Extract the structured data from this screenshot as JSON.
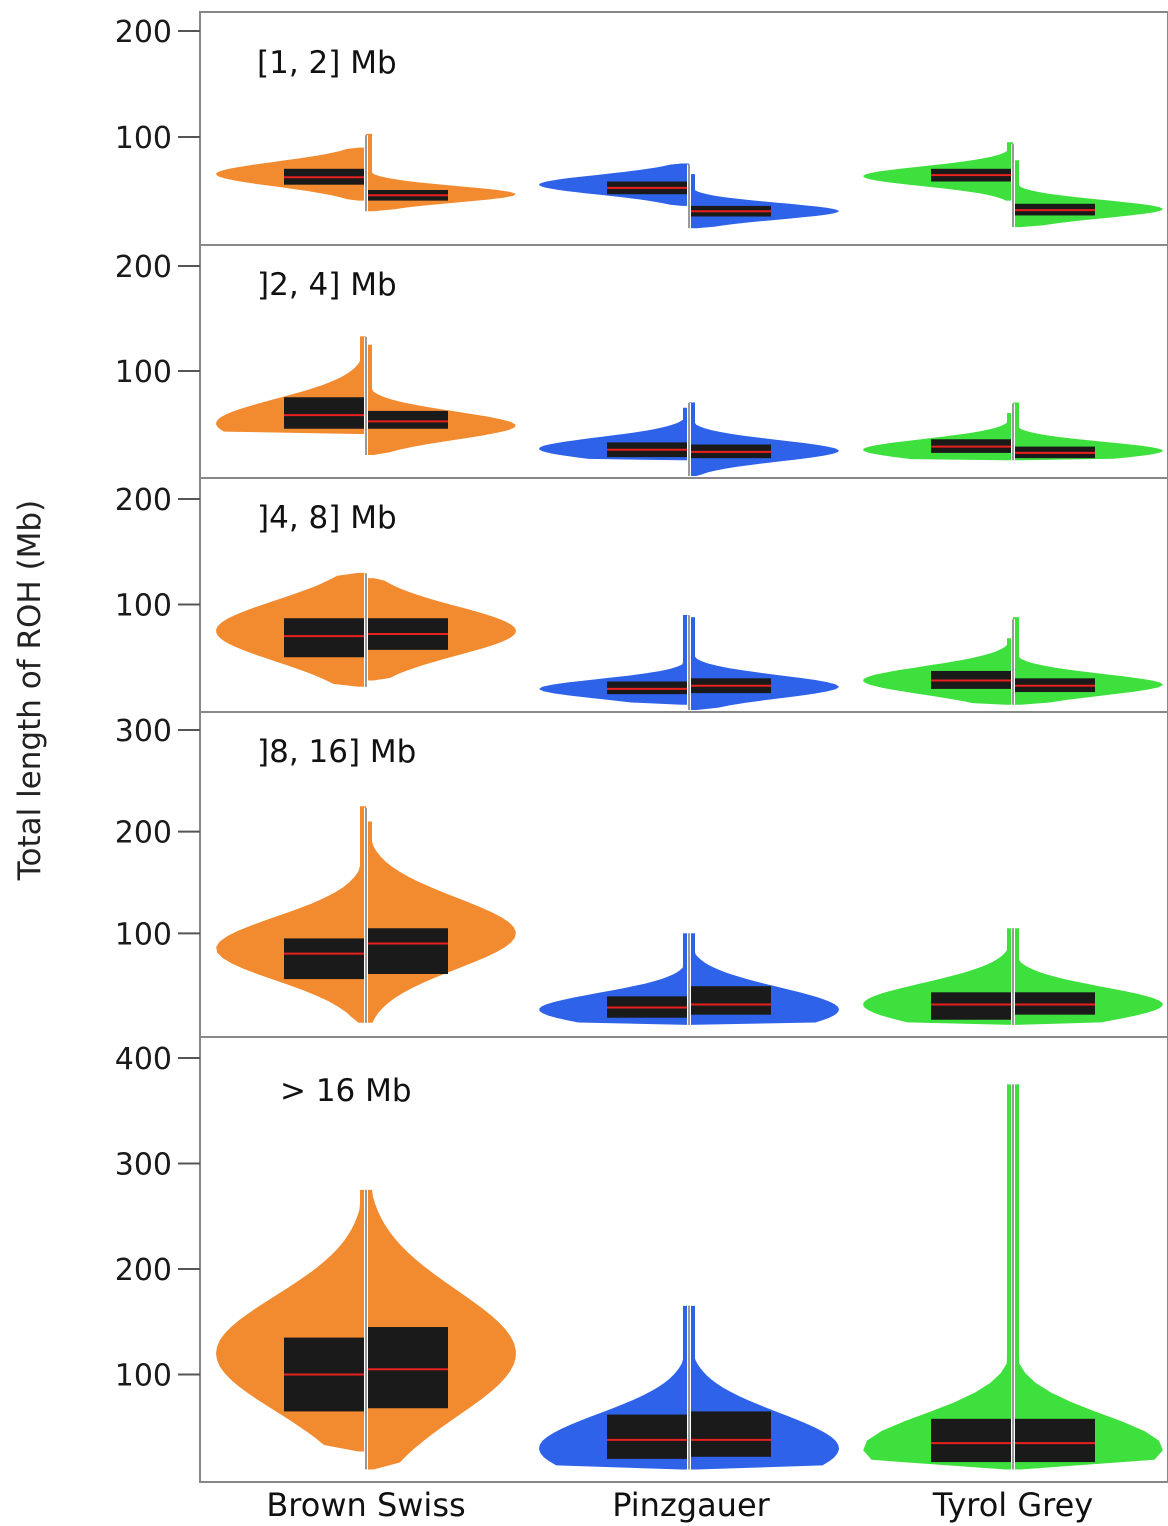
{
  "chart_data": {
    "type": "violin",
    "ylabel": "Total length of ROH (Mb)",
    "categories": [
      "Brown Swiss",
      "Pinzgauer",
      "Tyrol Grey"
    ],
    "colors": {
      "Brown Swiss": "#f28a30",
      "Pinzgauer": "#2e62e8",
      "Tyrol Grey": "#3de03d",
      "box": "#1a1a1a",
      "median": "#e8201e",
      "frame": "#888888"
    },
    "panels": [
      {
        "label": "[1, 2] Mb",
        "ylim": [
          0,
          200
        ],
        "yticks": [
          "100",
          "200"
        ],
        "groups": [
          {
            "left": {
              "min": 40,
              "max": 90,
              "q1": 55,
              "median": 62,
              "q3": 70,
              "mode": 65
            },
            "right": {
              "min": 30,
              "max": 103,
              "q1": 40,
              "median": 45,
              "q3": 50,
              "mode": 46
            }
          },
          {
            "left": {
              "min": 35,
              "max": 75,
              "q1": 46,
              "median": 52,
              "q3": 58,
              "mode": 55
            },
            "right": {
              "min": 14,
              "max": 65,
              "q1": 25,
              "median": 30,
              "q3": 35,
              "mode": 30
            }
          },
          {
            "left": {
              "min": 40,
              "max": 95,
              "q1": 58,
              "median": 64,
              "q3": 70,
              "mode": 63
            },
            "right": {
              "min": 15,
              "max": 78,
              "q1": 26,
              "median": 31,
              "q3": 37,
              "mode": 32
            }
          }
        ]
      },
      {
        "label": "]2, 4] Mb",
        "ylim": [
          0,
          200
        ],
        "yticks": [
          "100",
          "200"
        ],
        "groups": [
          {
            "left": {
              "min": 40,
              "max": 133,
              "q1": 45,
              "median": 58,
              "q3": 75,
              "mode": 50
            },
            "right": {
              "min": 20,
              "max": 125,
              "q1": 45,
              "median": 52,
              "q3": 62,
              "mode": 48
            }
          },
          {
            "left": {
              "min": 15,
              "max": 65,
              "q1": 18,
              "median": 25,
              "q3": 32,
              "mode": 26
            },
            "right": {
              "min": 0,
              "max": 70,
              "q1": 17,
              "median": 23,
              "q3": 30,
              "mode": 24
            }
          },
          {
            "left": {
              "min": 15,
              "max": 60,
              "q1": 22,
              "median": 28,
              "q3": 35,
              "mode": 25
            },
            "right": {
              "min": 15,
              "max": 70,
              "q1": 17,
              "median": 22,
              "q3": 28,
              "mode": 24
            }
          }
        ]
      },
      {
        "label": "]4, 8] Mb",
        "ylim": [
          0,
          200
        ],
        "yticks": [
          "100",
          "200"
        ],
        "groups": [
          {
            "left": {
              "min": 22,
              "max": 130,
              "q1": 50,
              "median": 70,
              "q3": 87,
              "mode": 75
            },
            "right": {
              "min": 28,
              "max": 125,
              "q1": 57,
              "median": 72,
              "q3": 87,
              "mode": 75
            }
          },
          {
            "left": {
              "min": 5,
              "max": 90,
              "q1": 15,
              "median": 20,
              "q3": 27,
              "mode": 20
            },
            "right": {
              "min": 0,
              "max": 88,
              "q1": 16,
              "median": 23,
              "q3": 30,
              "mode": 22
            }
          },
          {
            "left": {
              "min": 5,
              "max": 68,
              "q1": 20,
              "median": 28,
              "q3": 37,
              "mode": 28
            },
            "right": {
              "min": 5,
              "max": 88,
              "q1": 17,
              "median": 23,
              "q3": 30,
              "mode": 24
            }
          }
        ]
      },
      {
        "label": "]8, 16] Mb",
        "ylim": [
          0,
          300
        ],
        "yticks": [
          "100",
          "200",
          "300"
        ],
        "groups": [
          {
            "left": {
              "min": 12,
              "max": 225,
              "q1": 55,
              "median": 80,
              "q3": 95,
              "mode": 85
            },
            "right": {
              "min": 12,
              "max": 210,
              "q1": 60,
              "median": 90,
              "q3": 105,
              "mode": 100
            }
          },
          {
            "left": {
              "min": 10,
              "max": 100,
              "q1": 17,
              "median": 27,
              "q3": 38,
              "mode": 25
            },
            "right": {
              "min": 10,
              "max": 100,
              "q1": 20,
              "median": 30,
              "q3": 48,
              "mode": 25
            }
          },
          {
            "left": {
              "min": 10,
              "max": 105,
              "q1": 15,
              "median": 30,
              "q3": 42,
              "mode": 30
            },
            "right": {
              "min": 10,
              "max": 105,
              "q1": 20,
              "median": 30,
              "q3": 42,
              "mode": 30
            }
          }
        ]
      },
      {
        "label": "> 16 Mb",
        "ylim": [
          0,
          400
        ],
        "yticks": [
          "100",
          "200",
          "300",
          "400"
        ],
        "groups": [
          {
            "left": {
              "min": 27,
              "max": 275,
              "q1": 65,
              "median": 100,
              "q3": 135,
              "mode": 120
            },
            "right": {
              "min": 10,
              "max": 275,
              "q1": 68,
              "median": 105,
              "q3": 145,
              "mode": 120
            }
          },
          {
            "left": {
              "min": 10,
              "max": 165,
              "q1": 20,
              "median": 38,
              "q3": 62,
              "mode": 30
            },
            "right": {
              "min": 10,
              "max": 165,
              "q1": 22,
              "median": 38,
              "q3": 65,
              "mode": 30
            }
          },
          {
            "left": {
              "min": 10,
              "max": 375,
              "q1": 17,
              "median": 35,
              "q3": 58,
              "mode": 30
            },
            "right": {
              "min": 10,
              "max": 375,
              "q1": 17,
              "median": 35,
              "q3": 58,
              "mode": 30
            }
          }
        ]
      }
    ]
  }
}
